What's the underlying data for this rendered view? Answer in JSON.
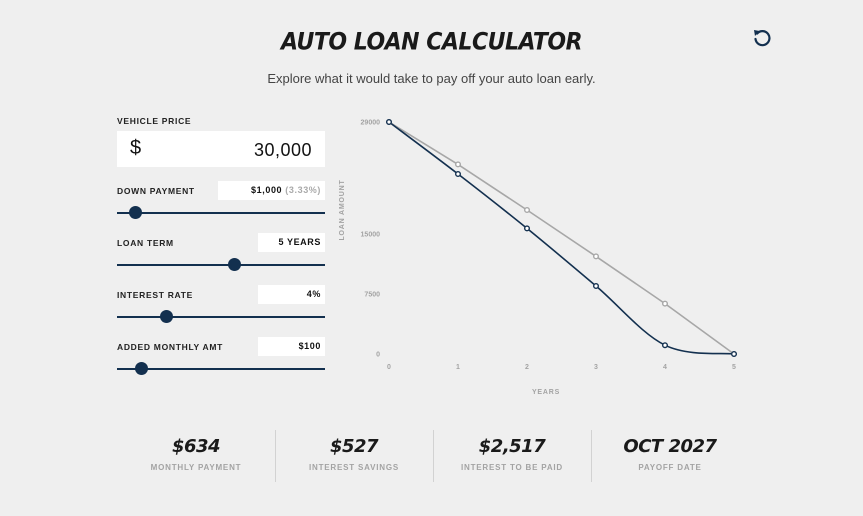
{
  "header": {
    "title": "AUTO LOAN CALCULATOR",
    "subtitle": "Explore what it would take to pay off your auto loan early.",
    "reset_icon": "reset-icon"
  },
  "form": {
    "vehicle_price": {
      "label": "VEHICLE PRICE",
      "currency": "$",
      "value": "30,000"
    },
    "down_payment": {
      "label": "DOWN PAYMENT",
      "value": "$1,000",
      "percent": "(3.33%)",
      "slider_fraction": 0.06
    },
    "loan_term": {
      "label": "LOAN TERM",
      "value": "5 YEARS",
      "slider_fraction": 0.57
    },
    "interest_rate": {
      "label": "INTEREST RATE",
      "value": "4%",
      "slider_fraction": 0.22
    },
    "added_monthly": {
      "label": "ADDED MONTHLY AMT",
      "value": "$100",
      "slider_fraction": 0.09
    }
  },
  "chart_data": {
    "type": "line",
    "xlabel": "YEARS",
    "ylabel": "LOAN AMOUNT",
    "x": [
      0,
      1,
      2,
      3,
      4,
      5
    ],
    "x_ticks": [
      "0",
      "1",
      "2",
      "3",
      "4",
      "5"
    ],
    "y_ticks": [
      {
        "label": "29000",
        "value": 29000
      },
      {
        "label": "15000",
        "value": 15000
      },
      {
        "label": "7500",
        "value": 7500
      },
      {
        "label": "0",
        "value": 0
      }
    ],
    "ylim": [
      0,
      29000
    ],
    "xlim": [
      0,
      5
    ],
    "series": [
      {
        "values": [
          29000,
          23700,
          18000,
          12200,
          6300,
          0
        ],
        "color": "#a7a7a7",
        "curved": false
      },
      {
        "values": [
          29000,
          22500,
          15700,
          8500,
          1100,
          0
        ],
        "color": "#13304f",
        "curved": true
      }
    ]
  },
  "stats": [
    {
      "value": "$634",
      "caption": "MONTHLY PAYMENT"
    },
    {
      "value": "$527",
      "caption": "INTEREST SAVINGS"
    },
    {
      "value": "$2,517",
      "caption": "INTEREST TO BE PAID"
    },
    {
      "value": "OCT 2027",
      "caption": "PAYOFF DATE"
    }
  ],
  "colors": {
    "navy": "#13304f",
    "gray_line": "#a7a7a7",
    "background": "#efefef"
  }
}
